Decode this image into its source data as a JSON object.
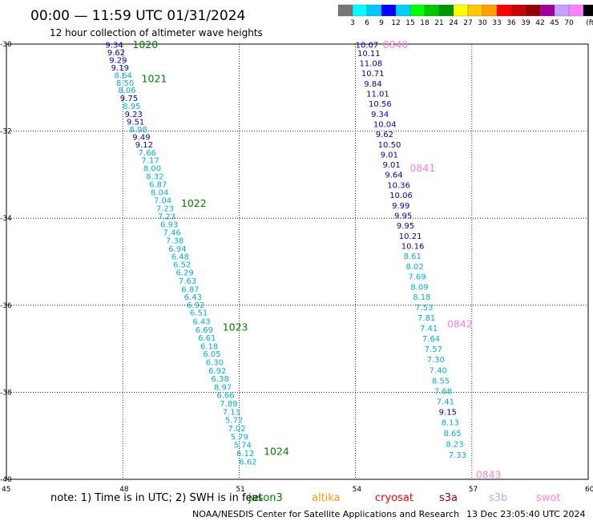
{
  "header": {
    "title": "00:00 — 11:59 UTC 01/31/2024",
    "subtitle": "12 hour collection of altimeter wave heights"
  },
  "legend": {
    "colors": [
      "#777777",
      "#00ffff",
      "#00c8ff",
      "#0000ff",
      "#00cfff",
      "#00ff00",
      "#00c800",
      "#009600",
      "#ffff00",
      "#ffc800",
      "#ffa000",
      "#ff0000",
      "#c80000",
      "#960000",
      "#a000a0",
      "#c8a0ff",
      "#ff80ff",
      "#000000"
    ],
    "labels": [
      "3",
      "6",
      "9",
      "12",
      "15",
      "18",
      "21",
      "24",
      "27",
      "30",
      "33",
      "36",
      "39",
      "42",
      "45",
      "70"
    ],
    "unit": "(ft)"
  },
  "axes": {
    "lon_labels": [
      "45",
      "48",
      "51",
      "54",
      "57",
      "60"
    ],
    "lat_labels": [
      "-30",
      "-32",
      "-34",
      "-36",
      "-38",
      "-40"
    ]
  },
  "tracks": [
    {
      "name": "jason3",
      "color": "#008000",
      "times": [
        {
          "t": "1020",
          "lat": -30.0
        },
        {
          "t": "1021",
          "lat": -30.78
        },
        {
          "t": "1022",
          "lat": -33.65
        },
        {
          "t": "1023",
          "lat": -36.49
        },
        {
          "t": "1024",
          "lat": -39.35
        }
      ],
      "points": [
        {
          "lon": 47.55,
          "lat": -30.03,
          "v": "9.34",
          "c": "#0000c8"
        },
        {
          "lon": 47.6,
          "lat": -30.2,
          "v": "9.62",
          "c": "#0000c8"
        },
        {
          "lon": 47.65,
          "lat": -30.38,
          "v": "9.29",
          "c": "#0000c8"
        },
        {
          "lon": 47.7,
          "lat": -30.55,
          "v": "9.19",
          "c": "#0000c8"
        },
        {
          "lon": 47.78,
          "lat": -30.73,
          "v": "8.64",
          "c": "#00b0e0"
        },
        {
          "lon": 47.83,
          "lat": -30.9,
          "v": "8.50",
          "c": "#00b0e0"
        },
        {
          "lon": 47.88,
          "lat": -31.07,
          "v": "8.06",
          "c": "#00b0e0"
        },
        {
          "lon": 47.93,
          "lat": -31.25,
          "v": "9.75",
          "c": "#0000c8"
        },
        {
          "lon": 48.0,
          "lat": -31.44,
          "v": "8.95",
          "c": "#00b0e0"
        },
        {
          "lon": 48.05,
          "lat": -31.62,
          "v": "9.23",
          "c": "#0000c8"
        },
        {
          "lon": 48.1,
          "lat": -31.8,
          "v": "9.51",
          "c": "#0000c8"
        },
        {
          "lon": 48.17,
          "lat": -31.97,
          "v": "8.98",
          "c": "#00b0e0"
        },
        {
          "lon": 48.25,
          "lat": -32.15,
          "v": "9.49",
          "c": "#0000c8"
        },
        {
          "lon": 48.32,
          "lat": -32.32,
          "v": "9.12",
          "c": "#0000c8"
        },
        {
          "lon": 48.4,
          "lat": -32.5,
          "v": "7.66",
          "c": "#00b0e0"
        },
        {
          "lon": 48.48,
          "lat": -32.68,
          "v": "7.17",
          "c": "#00b0e0"
        },
        {
          "lon": 48.53,
          "lat": -32.86,
          "v": "8.00",
          "c": "#00b0e0"
        },
        {
          "lon": 48.6,
          "lat": -33.05,
          "v": "8.32",
          "c": "#00b0e0"
        },
        {
          "lon": 48.68,
          "lat": -33.23,
          "v": "6.87",
          "c": "#00b0e0"
        },
        {
          "lon": 48.72,
          "lat": -33.42,
          "v": "8.04",
          "c": "#00b0e0"
        },
        {
          "lon": 48.8,
          "lat": -33.6,
          "v": "7.04",
          "c": "#00b0e0"
        },
        {
          "lon": 48.86,
          "lat": -33.78,
          "v": "7.23",
          "c": "#00b0e0"
        },
        {
          "lon": 48.9,
          "lat": -33.97,
          "v": "7.23",
          "c": "#00b0e0"
        },
        {
          "lon": 48.97,
          "lat": -34.15,
          "v": "6.93",
          "c": "#00b0e0"
        },
        {
          "lon": 49.04,
          "lat": -34.34,
          "v": "7.46",
          "c": "#00b0e0"
        },
        {
          "lon": 49.11,
          "lat": -34.52,
          "v": "7.38",
          "c": "#00b0e0"
        },
        {
          "lon": 49.18,
          "lat": -34.71,
          "v": "6.94",
          "c": "#00b0e0"
        },
        {
          "lon": 49.25,
          "lat": -34.89,
          "v": "6.48",
          "c": "#00b0e0"
        },
        {
          "lon": 49.3,
          "lat": -35.07,
          "v": "6.52",
          "c": "#00b0e0"
        },
        {
          "lon": 49.37,
          "lat": -35.26,
          "v": "6.29",
          "c": "#00b0e0"
        },
        {
          "lon": 49.44,
          "lat": -35.45,
          "v": "7.63",
          "c": "#00b0e0"
        },
        {
          "lon": 49.51,
          "lat": -35.64,
          "v": "6.87",
          "c": "#00b0e0"
        },
        {
          "lon": 49.58,
          "lat": -35.82,
          "v": "6.43",
          "c": "#00b0e0"
        },
        {
          "lon": 49.65,
          "lat": -36.0,
          "v": "6.92",
          "c": "#00b0e0"
        },
        {
          "lon": 49.73,
          "lat": -36.18,
          "v": "6.51",
          "c": "#00b0e0"
        },
        {
          "lon": 49.8,
          "lat": -36.38,
          "v": "6.43",
          "c": "#00b0e0"
        },
        {
          "lon": 49.87,
          "lat": -36.57,
          "v": "6.69",
          "c": "#00b0e0"
        },
        {
          "lon": 49.94,
          "lat": -36.76,
          "v": "6.61",
          "c": "#00b0e0"
        },
        {
          "lon": 50.0,
          "lat": -36.95,
          "v": "6.18",
          "c": "#00b0e0"
        },
        {
          "lon": 50.07,
          "lat": -37.13,
          "v": "6.05",
          "c": "#00b0e0"
        },
        {
          "lon": 50.14,
          "lat": -37.32,
          "v": "6.30",
          "c": "#00b0e0"
        },
        {
          "lon": 50.21,
          "lat": -37.51,
          "v": "6.92",
          "c": "#00b0e0"
        },
        {
          "lon": 50.28,
          "lat": -37.7,
          "v": "6.38",
          "c": "#00b0e0"
        },
        {
          "lon": 50.35,
          "lat": -37.89,
          "v": "8.97",
          "c": "#00b0e0"
        },
        {
          "lon": 50.42,
          "lat": -38.08,
          "v": "6.66",
          "c": "#00b0e0"
        },
        {
          "lon": 50.5,
          "lat": -38.27,
          "v": "7.89",
          "c": "#00b0e0"
        },
        {
          "lon": 50.57,
          "lat": -38.46,
          "v": "7.13",
          "c": "#00b0e0"
        },
        {
          "lon": 50.64,
          "lat": -38.65,
          "v": "5.72",
          "c": "#00b0e0"
        },
        {
          "lon": 50.71,
          "lat": -38.84,
          "v": "7.02",
          "c": "#00b0e0"
        },
        {
          "lon": 50.78,
          "lat": -39.03,
          "v": "5.79",
          "c": "#00b0e0"
        },
        {
          "lon": 50.86,
          "lat": -39.22,
          "v": "5.74",
          "c": "#00b0e0"
        },
        {
          "lon": 50.93,
          "lat": -39.41,
          "v": "6.12",
          "c": "#00b0e0"
        },
        {
          "lon": 51.0,
          "lat": -39.6,
          "v": "6.62",
          "c": "#00b0e0"
        }
      ]
    },
    {
      "name": "swot",
      "color": "#ff80e0",
      "times": [
        {
          "t": "0840",
          "lat": -30.0
        },
        {
          "t": "0841",
          "lat": -32.84
        },
        {
          "t": "0842",
          "lat": -36.42
        },
        {
          "t": "0843",
          "lat": -39.88
        }
      ],
      "points": [
        {
          "lon": 54.0,
          "lat": -30.03,
          "v": "10.07",
          "c": "#0000c8"
        },
        {
          "lon": 54.05,
          "lat": -30.22,
          "v": "10.11",
          "c": "#0000c8"
        },
        {
          "lon": 54.1,
          "lat": -30.45,
          "v": "11.08",
          "c": "#0000c8"
        },
        {
          "lon": 54.15,
          "lat": -30.68,
          "v": "10.71",
          "c": "#0000c8"
        },
        {
          "lon": 54.22,
          "lat": -30.92,
          "v": "9.84",
          "c": "#0000c8"
        },
        {
          "lon": 54.28,
          "lat": -31.15,
          "v": "11.01",
          "c": "#0000c8"
        },
        {
          "lon": 54.34,
          "lat": -31.38,
          "v": "10.56",
          "c": "#0000c8"
        },
        {
          "lon": 54.4,
          "lat": -31.62,
          "v": "9.34",
          "c": "#0000c8"
        },
        {
          "lon": 54.46,
          "lat": -31.85,
          "v": "10.04",
          "c": "#0000c8"
        },
        {
          "lon": 54.52,
          "lat": -32.08,
          "v": "9.62",
          "c": "#0000c8"
        },
        {
          "lon": 54.58,
          "lat": -32.32,
          "v": "10.50",
          "c": "#0000c8"
        },
        {
          "lon": 54.64,
          "lat": -32.55,
          "v": "9.01",
          "c": "#0000c8"
        },
        {
          "lon": 54.7,
          "lat": -32.78,
          "v": "9.01",
          "c": "#0000c8"
        },
        {
          "lon": 54.76,
          "lat": -33.01,
          "v": "9.64",
          "c": "#0000c8"
        },
        {
          "lon": 54.82,
          "lat": -33.25,
          "v": "10.36",
          "c": "#0000c8"
        },
        {
          "lon": 54.88,
          "lat": -33.48,
          "v": "10.06",
          "c": "#0000c8"
        },
        {
          "lon": 54.94,
          "lat": -33.72,
          "v": "9.99",
          "c": "#0000c8"
        },
        {
          "lon": 55.0,
          "lat": -33.95,
          "v": "9.95",
          "c": "#0000c8"
        },
        {
          "lon": 55.06,
          "lat": -34.18,
          "v": "9.95",
          "c": "#0000c8"
        },
        {
          "lon": 55.12,
          "lat": -34.42,
          "v": "10.21",
          "c": "#0000c8"
        },
        {
          "lon": 55.18,
          "lat": -34.65,
          "v": "10.16",
          "c": "#0000c8"
        },
        {
          "lon": 55.24,
          "lat": -34.88,
          "v": "8.61",
          "c": "#00b0e0"
        },
        {
          "lon": 55.3,
          "lat": -35.12,
          "v": "8.02",
          "c": "#00b0e0"
        },
        {
          "lon": 55.36,
          "lat": -35.35,
          "v": "7.69",
          "c": "#00b0e0"
        },
        {
          "lon": 55.42,
          "lat": -35.59,
          "v": "8.09",
          "c": "#00b0e0"
        },
        {
          "lon": 55.48,
          "lat": -35.82,
          "v": "8.18",
          "c": "#00b0e0"
        },
        {
          "lon": 55.54,
          "lat": -36.06,
          "v": "7.53",
          "c": "#00b0e0"
        },
        {
          "lon": 55.6,
          "lat": -36.3,
          "v": "7.81",
          "c": "#00b0e0"
        },
        {
          "lon": 55.66,
          "lat": -36.54,
          "v": "7.41",
          "c": "#00b0e0"
        },
        {
          "lon": 55.72,
          "lat": -36.78,
          "v": "7.64",
          "c": "#00b0e0"
        },
        {
          "lon": 55.78,
          "lat": -37.02,
          "v": "7.57",
          "c": "#00b0e0"
        },
        {
          "lon": 55.84,
          "lat": -37.26,
          "v": "7.30",
          "c": "#00b0e0"
        },
        {
          "lon": 55.9,
          "lat": -37.5,
          "v": "7.40",
          "c": "#00b0e0"
        },
        {
          "lon": 55.97,
          "lat": -37.74,
          "v": "8.55",
          "c": "#00b0e0"
        },
        {
          "lon": 56.03,
          "lat": -37.98,
          "v": "7.68",
          "c": "#00b0e0"
        },
        {
          "lon": 56.09,
          "lat": -38.22,
          "v": "7.41",
          "c": "#00b0e0"
        },
        {
          "lon": 56.15,
          "lat": -38.46,
          "v": "9.15",
          "c": "#0000c8"
        },
        {
          "lon": 56.21,
          "lat": -38.7,
          "v": "8.13",
          "c": "#00b0e0"
        },
        {
          "lon": 56.27,
          "lat": -38.95,
          "v": "8.65",
          "c": "#00b0e0"
        },
        {
          "lon": 56.33,
          "lat": -39.2,
          "v": "8.23",
          "c": "#00b0e0"
        },
        {
          "lon": 56.4,
          "lat": -39.45,
          "v": "7.33",
          "c": "#00b0e0"
        }
      ]
    }
  ],
  "note": "note:  1) Time is in UTC; 2) SWH is in feet",
  "satellites": [
    {
      "name": "jason3",
      "color": "#008000"
    },
    {
      "name": "altika",
      "color": "#ff9900"
    },
    {
      "name": "cryosat",
      "color": "#ff0000"
    },
    {
      "name": "s3a",
      "color": "#990000"
    },
    {
      "name": "s3b",
      "color": "#c8a0ff"
    },
    {
      "name": "swot",
      "color": "#ff80e0"
    }
  ],
  "footer": {
    "credit": "NOAA/NESDIS Center for Satellite Applications and Research",
    "timestamp": "13 Dec 23:05:40 UTC 2024"
  }
}
